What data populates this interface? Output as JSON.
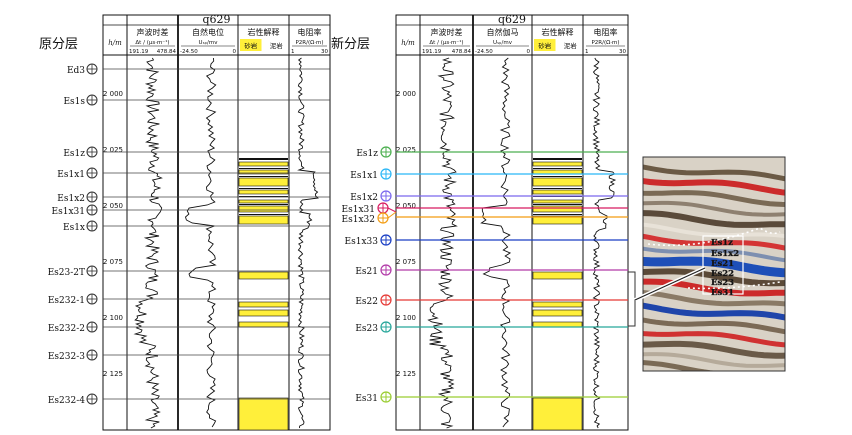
{
  "well_name": "q629",
  "left_panel": {
    "title": "原分层",
    "depth_header": "h/m",
    "columns": [
      {
        "name": "声波时差",
        "unit": "Δt / (μs·m⁻¹)",
        "min": "191.19",
        "max": "478.84"
      },
      {
        "name": "自然电位",
        "unit": "Uₛₚ/mv",
        "min": "-24.50",
        "max": "0"
      },
      {
        "name": "岩性解释",
        "legend": [
          "砂岩",
          "泥岩"
        ]
      },
      {
        "name": "电阻率",
        "unit": "P2R/(Ω·m)",
        "min": "1",
        "max": "30"
      }
    ],
    "layers": [
      "Ed3",
      "Es1s",
      "Es1z",
      "Es1x1",
      "Es1x2",
      "Es1x31",
      "Es1x",
      "Es23-2T",
      "Es232-1",
      "Es232-2",
      "Es232-3",
      "Es232-4"
    ]
  },
  "right_panel": {
    "title": "新分层",
    "depth_header": "h/m",
    "columns": [
      {
        "name": "声波时差",
        "unit": "Δt / (μs·m⁻¹)",
        "min": "191.19",
        "max": "478.84"
      },
      {
        "name": "自然伽马",
        "unit": "Uₛₚ/mv",
        "min": "-24.50",
        "max": "0"
      },
      {
        "name": "岩性解释",
        "legend": [
          "砂岩",
          "泥岩"
        ]
      },
      {
        "name": "电阻率",
        "unit": "P2R/(Ω·m)",
        "min": "1",
        "max": "30"
      }
    ],
    "layers": [
      {
        "name": "Es1z",
        "color": "#4caf50"
      },
      {
        "name": "Es1x1",
        "color": "#29b6f6"
      },
      {
        "name": "Es1x2",
        "color": "#7b68ee"
      },
      {
        "name": "Es1x31",
        "color": "#d81b60"
      },
      {
        "name": "Es1x32",
        "color": "#f39c12"
      },
      {
        "name": "Es1x33",
        "color": "#1a3fc4"
      },
      {
        "name": "Es21",
        "color": "#b23aa8"
      },
      {
        "name": "Es22",
        "color": "#e53935"
      },
      {
        "name": "Es23",
        "color": "#26a69a"
      },
      {
        "name": "Es31",
        "color": "#9acd32"
      }
    ]
  },
  "depth_ticks": [
    "2 000",
    "2 025",
    "2 050",
    "2 075",
    "2 100",
    "2 125"
  ],
  "seismic_labels": [
    "Es1z",
    "Es1x2",
    "Es21",
    "Es22",
    "Es23",
    "Es31"
  ],
  "colors": {
    "sand": "#ffef3a",
    "axis": "#111111"
  }
}
